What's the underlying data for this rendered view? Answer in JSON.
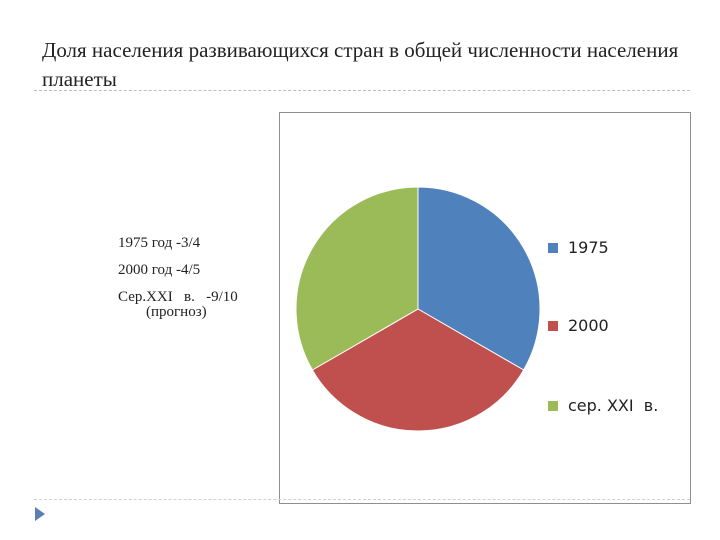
{
  "slide": {
    "title": "Доля населения развивающихся стран в общей численности населения планеты",
    "text_lines": [
      "1975 год -3/4",
      "2000 год -4/5",
      "Сер.XXI   в.   -9/10",
      "(прогноз)"
    ]
  },
  "chart_data": {
    "type": "pie",
    "categories": [
      "1975",
      "2000",
      "сер. XXI  в."
    ],
    "values": [
      1,
      1,
      1
    ],
    "colors": [
      "#4f81bd",
      "#c0504d",
      "#9bbb59"
    ],
    "legend_position": "right"
  }
}
